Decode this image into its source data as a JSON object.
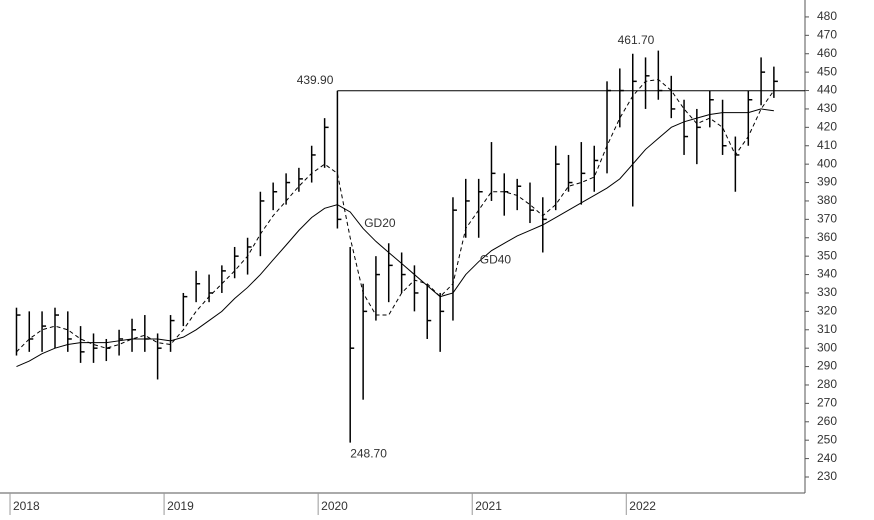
{
  "chart_data": {
    "type": "ohlc",
    "xlim": [
      2017.935,
      2023.16
    ],
    "xticks": [
      2018,
      2019,
      2020,
      2021,
      2022
    ],
    "ylim": [
      221.3,
      489.2
    ],
    "yticks": [
      230,
      240,
      250,
      260,
      270,
      280,
      290,
      300,
      310,
      320,
      330,
      340,
      350,
      360,
      370,
      380,
      390,
      400,
      410,
      420,
      430,
      440,
      450,
      460,
      470,
      480
    ],
    "color": "#000000",
    "x": [
      2018.042,
      2018.125,
      2018.208,
      2018.292,
      2018.375,
      2018.458,
      2018.542,
      2018.625,
      2018.708,
      2018.792,
      2018.875,
      2018.958,
      2019.042,
      2019.125,
      2019.208,
      2019.292,
      2019.375,
      2019.458,
      2019.542,
      2019.625,
      2019.708,
      2019.792,
      2019.875,
      2019.958,
      2020.042,
      2020.125,
      2020.208,
      2020.292,
      2020.375,
      2020.458,
      2020.542,
      2020.625,
      2020.708,
      2020.792,
      2020.875,
      2020.958,
      2021.042,
      2021.125,
      2021.208,
      2021.292,
      2021.375,
      2021.458,
      2021.542,
      2021.625,
      2021.708,
      2021.792,
      2021.875,
      2021.958,
      2022.042,
      2022.125,
      2022.208,
      2022.292,
      2022.375,
      2022.458,
      2022.542,
      2022.625,
      2022.708,
      2022.792,
      2022.875,
      2022.958
    ],
    "high": [
      322,
      320,
      320,
      322,
      320,
      312,
      308,
      305,
      310,
      316,
      318,
      308,
      318,
      330,
      342,
      340,
      345,
      355,
      360,
      385,
      390,
      395,
      398,
      410,
      425,
      439.9,
      355,
      335,
      350,
      357,
      352,
      345,
      335,
      330,
      382,
      392,
      392,
      412,
      395,
      392,
      390,
      382,
      410,
      405,
      412,
      410,
      445,
      452,
      460,
      458,
      461.7,
      448,
      435,
      430,
      440,
      435,
      415,
      440,
      458,
      453
    ],
    "low": [
      296,
      298,
      298,
      300,
      298,
      292,
      292,
      293,
      296,
      298,
      298,
      283,
      298,
      312,
      325,
      325,
      330,
      338,
      340,
      350,
      375,
      378,
      385,
      390,
      398,
      365,
      248.7,
      272,
      315,
      325,
      330,
      320,
      305,
      298,
      315,
      360,
      360,
      380,
      372,
      375,
      368,
      352,
      375,
      385,
      378,
      385,
      395,
      420,
      377,
      430,
      435,
      425,
      405,
      400,
      420,
      405,
      385,
      410,
      432,
      436
    ],
    "close": [
      318,
      305,
      312,
      318,
      305,
      298,
      300,
      300,
      305,
      310,
      305,
      300,
      315,
      328,
      335,
      330,
      342,
      350,
      355,
      380,
      385,
      390,
      392,
      405,
      420,
      370,
      300,
      320,
      340,
      345,
      340,
      330,
      315,
      320,
      375,
      380,
      385,
      395,
      385,
      388,
      375,
      370,
      400,
      390,
      395,
      402,
      440,
      440,
      445,
      448,
      440,
      430,
      415,
      420,
      435,
      410,
      405,
      435,
      450,
      445
    ],
    "series": [
      {
        "name": "GD20",
        "dash": true,
        "values": [
          298,
          305,
          310,
          312,
          310,
          305,
          302,
          300,
          302,
          305,
          307,
          303,
          302,
          310,
          320,
          328,
          335,
          342,
          350,
          362,
          372,
          380,
          388,
          395,
          400,
          395,
          360,
          330,
          318,
          318,
          330,
          337,
          335,
          328,
          335,
          365,
          375,
          385,
          385,
          383,
          378,
          372,
          378,
          388,
          390,
          393,
          410,
          425,
          437,
          445,
          446,
          440,
          430,
          422,
          425,
          420,
          405,
          415,
          430,
          440
        ]
      },
      {
        "name": "GD40",
        "dash": false,
        "values": [
          290,
          293,
          297,
          300,
          302,
          303,
          303,
          303,
          304,
          305,
          305,
          305,
          304,
          306,
          310,
          315,
          320,
          327,
          333,
          340,
          348,
          356,
          364,
          371,
          376,
          378,
          374,
          365,
          358,
          352,
          346,
          340,
          334,
          328,
          330,
          340,
          347,
          353,
          357,
          361,
          364,
          367,
          371,
          375,
          379,
          383,
          387,
          392,
          400,
          408,
          414,
          420,
          423,
          425,
          427,
          428,
          428,
          428,
          430,
          429
        ]
      }
    ],
    "reference_line": 439.9,
    "annotations": [
      {
        "x": 2020.125,
        "value": 439.9,
        "label": "439.90"
      },
      {
        "x": 2020.208,
        "value": 248.7,
        "label": "248.70"
      },
      {
        "x": 2022.208,
        "value": 461.7,
        "label": "461.70"
      }
    ]
  }
}
